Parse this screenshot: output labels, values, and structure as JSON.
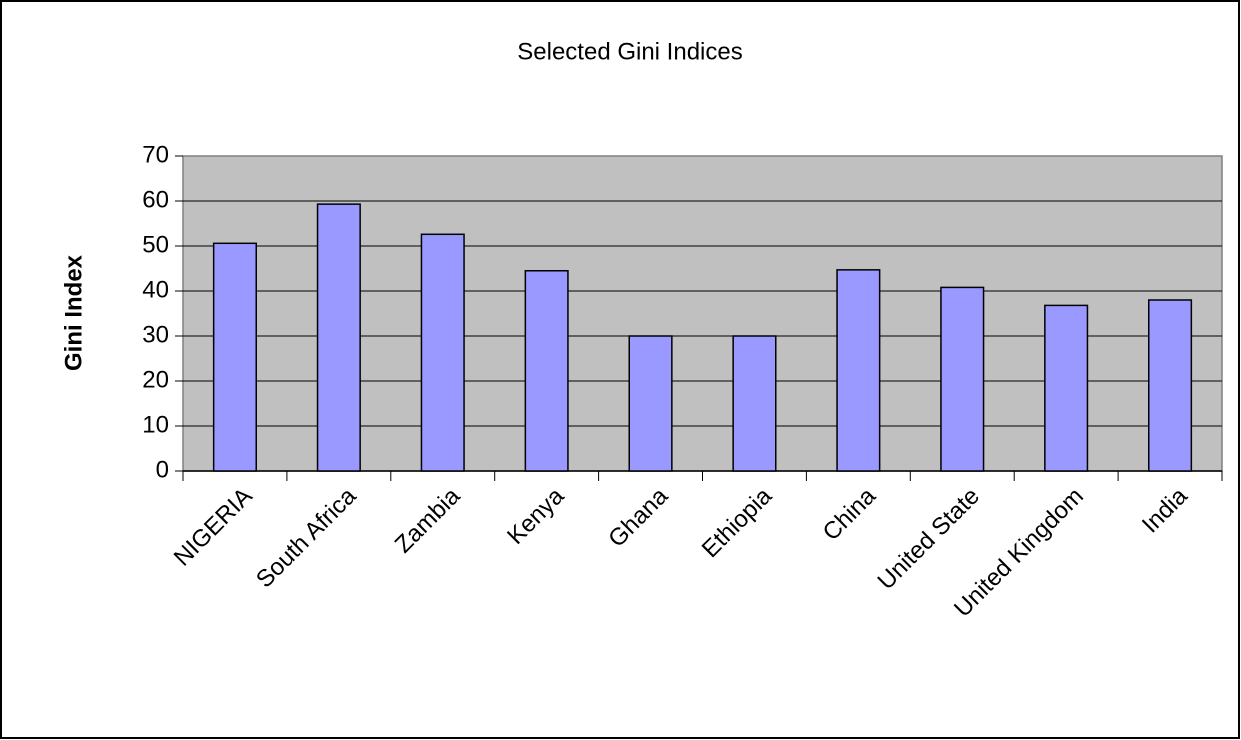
{
  "chart_data": {
    "type": "bar",
    "title": "Selected Gini Indices",
    "y_label": "Gini Index",
    "categories": [
      "NIGERIA",
      "South Africa",
      "Zambia",
      "Kenya",
      "Ghana",
      "Ethiopia",
      "China",
      "United State",
      "United Kingdom",
      "India"
    ],
    "values": [
      50.6,
      59.3,
      52.6,
      44.5,
      30,
      30,
      44.7,
      40.8,
      36.8,
      38
    ],
    "color": "#9999ff",
    "ylim": [
      0,
      70
    ],
    "yticks": [
      0,
      10,
      20,
      30,
      40,
      50,
      60,
      70
    ],
    "grid": true
  }
}
